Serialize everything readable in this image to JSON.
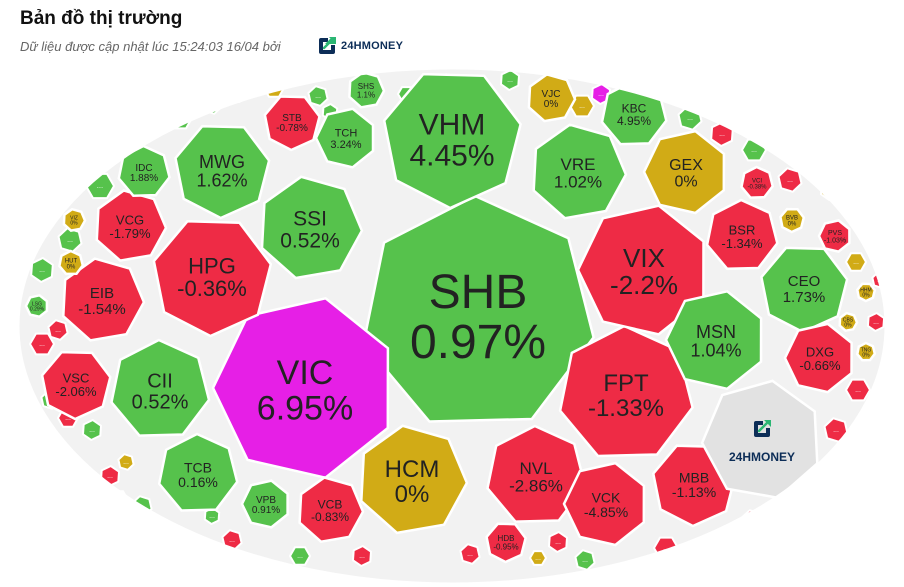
{
  "header": {
    "title": "Bản đồ thị trường",
    "subtitle": "Dữ liệu được cập nhật lúc 15:24:03 16/04 bởi",
    "brand": "24HMONEY"
  },
  "colors": {
    "up": "#56c24c",
    "down": "#ee2b45",
    "flat": "#d1ab16",
    "ceiling": "#e61fe6",
    "logo_cell": "#e2e2e2",
    "border": "#ffffff",
    "brand_green": "#2bb673",
    "brand_navy": "#0c2d57"
  },
  "chart_data": {
    "type": "treemap",
    "title": "Bản đồ thị trường",
    "color_scale": [
      "ceiling",
      "up",
      "flat",
      "down"
    ],
    "tickers": [
      {
        "symbol": "SHB",
        "change": "0.97%",
        "pct": 0.97,
        "status": "up"
      },
      {
        "symbol": "VIC",
        "change": "6.95%",
        "pct": 6.95,
        "status": "ceiling"
      },
      {
        "symbol": "VHM",
        "change": "4.45%",
        "pct": 4.45,
        "status": "up"
      },
      {
        "symbol": "HCM",
        "change": "0%",
        "pct": 0,
        "status": "flat"
      },
      {
        "symbol": "FPT",
        "change": "-1.33%",
        "pct": -1.33,
        "status": "down"
      },
      {
        "symbol": "VIX",
        "change": "-2.2%",
        "pct": -2.2,
        "status": "down"
      },
      {
        "symbol": "HPG",
        "change": "-0.36%",
        "pct": -0.36,
        "status": "down"
      },
      {
        "symbol": "SSI",
        "change": "0.52%",
        "pct": 0.52,
        "status": "up"
      },
      {
        "symbol": "CII",
        "change": "0.52%",
        "pct": 0.52,
        "status": "up"
      },
      {
        "symbol": "MSN",
        "change": "1.04%",
        "pct": 1.04,
        "status": "up"
      },
      {
        "symbol": "MWG",
        "change": "1.62%",
        "pct": 1.62,
        "status": "up"
      },
      {
        "symbol": "VRE",
        "change": "1.02%",
        "pct": 1.02,
        "status": "up"
      },
      {
        "symbol": "NVL",
        "change": "-2.86%",
        "pct": -2.86,
        "status": "down"
      },
      {
        "symbol": "GEX",
        "change": "0%",
        "pct": 0,
        "status": "flat"
      },
      {
        "symbol": "CEO",
        "change": "1.73%",
        "pct": 1.73,
        "status": "up"
      },
      {
        "symbol": "EIB",
        "change": "-1.54%",
        "pct": -1.54,
        "status": "down"
      },
      {
        "symbol": "TCB",
        "change": "0.16%",
        "pct": 0.16,
        "status": "up"
      },
      {
        "symbol": "VCK",
        "change": "-4.85%",
        "pct": -4.85,
        "status": "down"
      },
      {
        "symbol": "MBB",
        "change": "-1.13%",
        "pct": -1.13,
        "status": "down"
      },
      {
        "symbol": "VCG",
        "change": "-1.79%",
        "pct": -1.79,
        "status": "down"
      },
      {
        "symbol": "BSR",
        "change": "-1.34%",
        "pct": -1.34,
        "status": "down"
      },
      {
        "symbol": "DXG",
        "change": "-0.66%",
        "pct": -0.66,
        "status": "down"
      },
      {
        "symbol": "VSC",
        "change": "-2.06%",
        "pct": -2.06,
        "status": "down"
      },
      {
        "symbol": "VCB",
        "change": "-0.83%",
        "pct": -0.83,
        "status": "down"
      },
      {
        "symbol": "KBC",
        "change": "4.95%",
        "pct": 4.95,
        "status": "up"
      },
      {
        "symbol": "TCH",
        "change": "3.24%",
        "pct": 3.24,
        "status": "up"
      },
      {
        "symbol": "STB",
        "change": "-0.78%",
        "pct": -0.78,
        "status": "down"
      },
      {
        "symbol": "VJC",
        "change": "0%",
        "pct": 0,
        "status": "flat"
      },
      {
        "symbol": "IDC",
        "change": "1.88%",
        "pct": 1.88,
        "status": "up"
      },
      {
        "symbol": "VPB",
        "change": "0.91%",
        "pct": 0.91,
        "status": "up"
      },
      {
        "symbol": "HDB",
        "change": "-0.95%",
        "pct": -0.95,
        "status": "down"
      },
      {
        "symbol": "SHS",
        "change": "1.1%",
        "pct": 1.1,
        "status": "up"
      },
      {
        "symbol": "VCI",
        "change": "-0.38%",
        "pct": -0.38,
        "status": "down"
      },
      {
        "symbol": "PVS",
        "change": "-1.03%",
        "pct": -1.03,
        "status": "down"
      },
      {
        "symbol": "BVB",
        "change": "0%",
        "pct": 0,
        "status": "flat"
      },
      {
        "symbol": "VIZ",
        "change": "0%",
        "pct": 0,
        "status": "flat"
      },
      {
        "symbol": "HUT",
        "change": "0%",
        "pct": 0,
        "status": "flat"
      },
      {
        "symbol": "LSG",
        "change": "0.29%",
        "pct": 0.29,
        "status": "up"
      },
      {
        "symbol": "HHM",
        "change": "0%",
        "pct": 0,
        "status": "flat"
      },
      {
        "symbol": "CBS",
        "change": "0%",
        "pct": 0,
        "status": "flat"
      },
      {
        "symbol": "TNG",
        "change": "0%",
        "pct": 0,
        "status": "flat"
      }
    ],
    "ellipsis_cells": [
      {
        "label": "...",
        "status": "up"
      },
      {
        "label": "...",
        "status": "up"
      },
      {
        "label": "...",
        "status": "up"
      },
      {
        "label": "...",
        "status": "down"
      },
      {
        "label": "...",
        "status": "down"
      },
      {
        "label": "...",
        "status": "ceiling"
      },
      {
        "label": "...",
        "status": "down"
      },
      {
        "label": "...",
        "status": "up"
      },
      {
        "label": "...",
        "status": "down"
      },
      {
        "label": "...",
        "status": "up"
      },
      {
        "label": "...",
        "status": "down"
      },
      {
        "label": "...",
        "status": "flat"
      },
      {
        "label": "...",
        "status": "flat"
      },
      {
        "label": "...",
        "status": "down"
      },
      {
        "label": "...",
        "status": "down"
      },
      {
        "label": "...",
        "status": "down"
      },
      {
        "label": "...",
        "status": "down"
      },
      {
        "label": "...",
        "status": "flat"
      },
      {
        "label": "...",
        "status": "up"
      },
      {
        "label": "...",
        "status": "down"
      },
      {
        "label": "...",
        "status": "up"
      },
      {
        "label": "...",
        "status": "down"
      },
      {
        "label": "...",
        "status": "up"
      },
      {
        "label": "...",
        "status": "down"
      },
      {
        "label": "...",
        "status": "flat"
      },
      {
        "label": "...",
        "status": "down"
      },
      {
        "label": "...",
        "status": "down"
      },
      {
        "label": "...",
        "status": "up"
      },
      {
        "label": "...",
        "status": "down"
      },
      {
        "label": "...",
        "status": "up"
      },
      {
        "label": "...",
        "status": "down"
      },
      {
        "label": "...",
        "status": "up"
      },
      {
        "label": "...",
        "status": "down"
      },
      {
        "label": "...",
        "status": "down"
      },
      {
        "label": "...",
        "status": "flat"
      },
      {
        "label": "...",
        "status": "up"
      },
      {
        "label": "...",
        "status": "down"
      },
      {
        "label": "...",
        "status": "up"
      },
      {
        "label": "...",
        "status": "down"
      },
      {
        "label": "...",
        "status": "up"
      },
      {
        "label": "...",
        "status": "up"
      },
      {
        "label": "...",
        "status": "down"
      },
      {
        "label": "...",
        "status": "flat"
      },
      {
        "label": "...",
        "status": "up"
      },
      {
        "label": "...",
        "status": "up"
      },
      {
        "label": "...",
        "status": "up"
      },
      {
        "label": "...",
        "status": "down"
      },
      {
        "label": "...",
        "status": "up"
      },
      {
        "label": "...",
        "status": "flat"
      },
      {
        "label": "...",
        "status": "down"
      },
      {
        "label": "...",
        "status": "up"
      },
      {
        "label": "...",
        "status": "down"
      }
    ],
    "logo_cell": {
      "label": "24HMONEY"
    }
  }
}
